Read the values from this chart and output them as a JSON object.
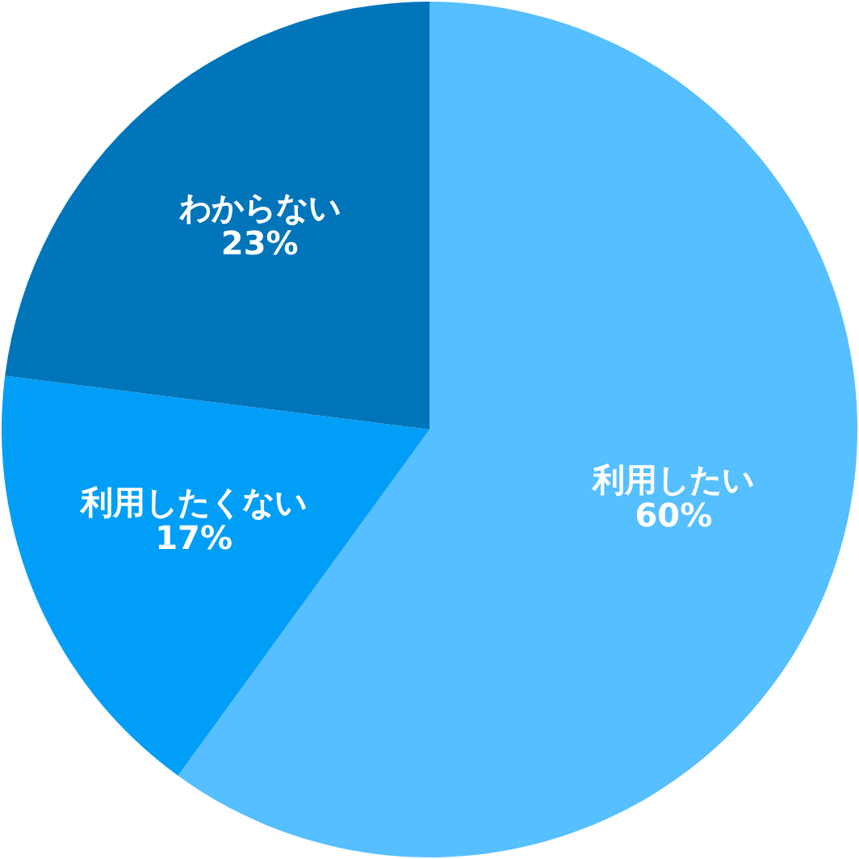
{
  "chart_data": {
    "type": "pie",
    "categories": [
      "利用したい",
      "利用したくない",
      "わからない"
    ],
    "values": [
      60,
      17,
      23
    ],
    "value_labels": [
      "60%",
      "17%",
      "23%"
    ],
    "colors": [
      "#55bfff",
      "#009ef7",
      "#0075b9"
    ]
  }
}
